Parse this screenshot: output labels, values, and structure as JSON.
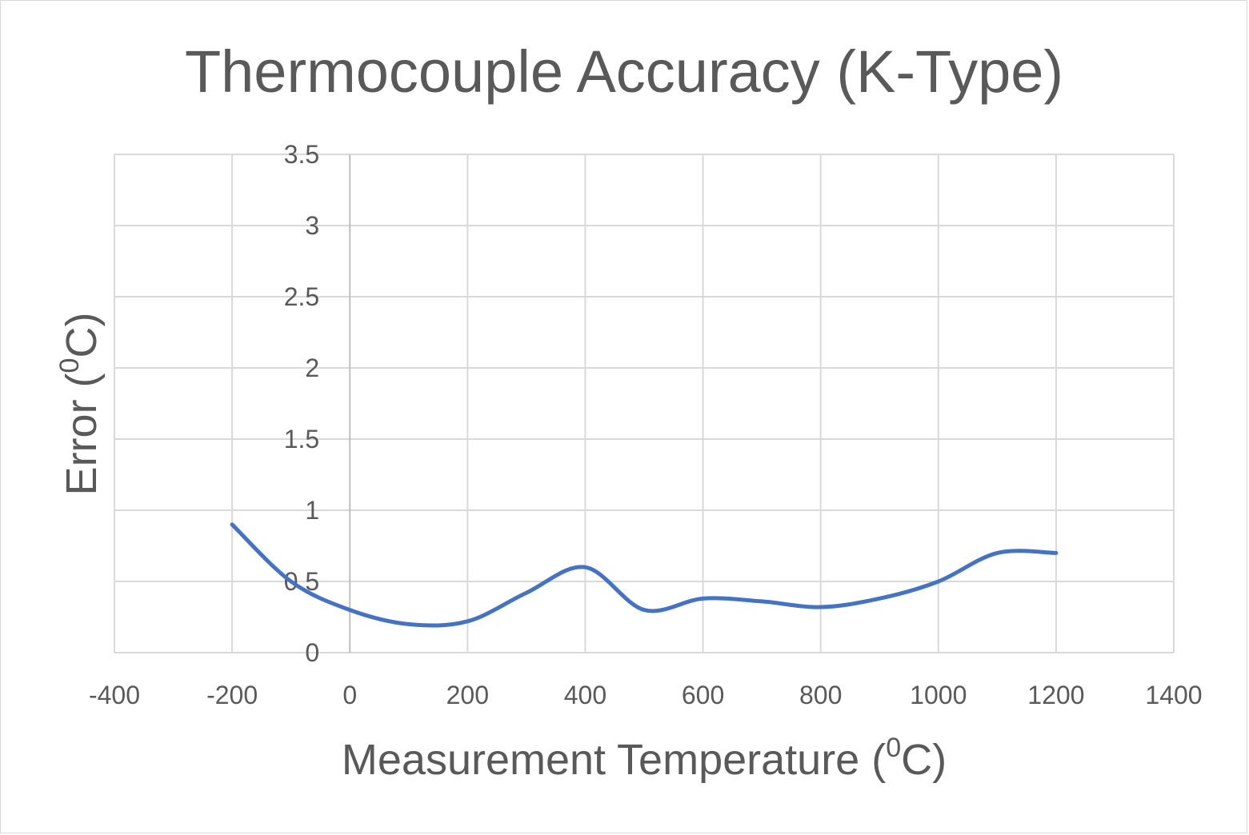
{
  "chart_data": {
    "type": "line",
    "title": "Thermocouple Accuracy (K-Type)",
    "xlabel": {
      "pre": "Measurement Temperature  (",
      "sup": "0",
      "post": "C)"
    },
    "ylabel": {
      "pre": "Error (",
      "sup": "0",
      "post": "C)"
    },
    "xlim": [
      -400,
      1400
    ],
    "ylim": [
      0,
      3.5
    ],
    "x_ticks": [
      -400,
      -200,
      0,
      200,
      400,
      600,
      800,
      1000,
      1200,
      1400
    ],
    "y_ticks": [
      0,
      0.5,
      1,
      1.5,
      2,
      2.5,
      3,
      3.5
    ],
    "x_tick_labels": [
      "-400",
      "-200",
      "0",
      "200",
      "400",
      "600",
      "800",
      "1000",
      "1200",
      "1400"
    ],
    "y_tick_labels": [
      "0",
      "0.5",
      "1",
      "1.5",
      "2",
      "2.5",
      "3",
      "3.5"
    ],
    "grid": true,
    "smooth": true,
    "series": [
      {
        "color": "#4472c4",
        "x": [
          -200,
          -100,
          0,
          100,
          200,
          300,
          400,
          500,
          600,
          700,
          800,
          900,
          1000,
          1100,
          1200
        ],
        "y": [
          0.9,
          0.5,
          0.3,
          0.2,
          0.22,
          0.42,
          0.6,
          0.3,
          0.38,
          0.36,
          0.32,
          0.38,
          0.5,
          0.7,
          0.7
        ]
      }
    ]
  }
}
